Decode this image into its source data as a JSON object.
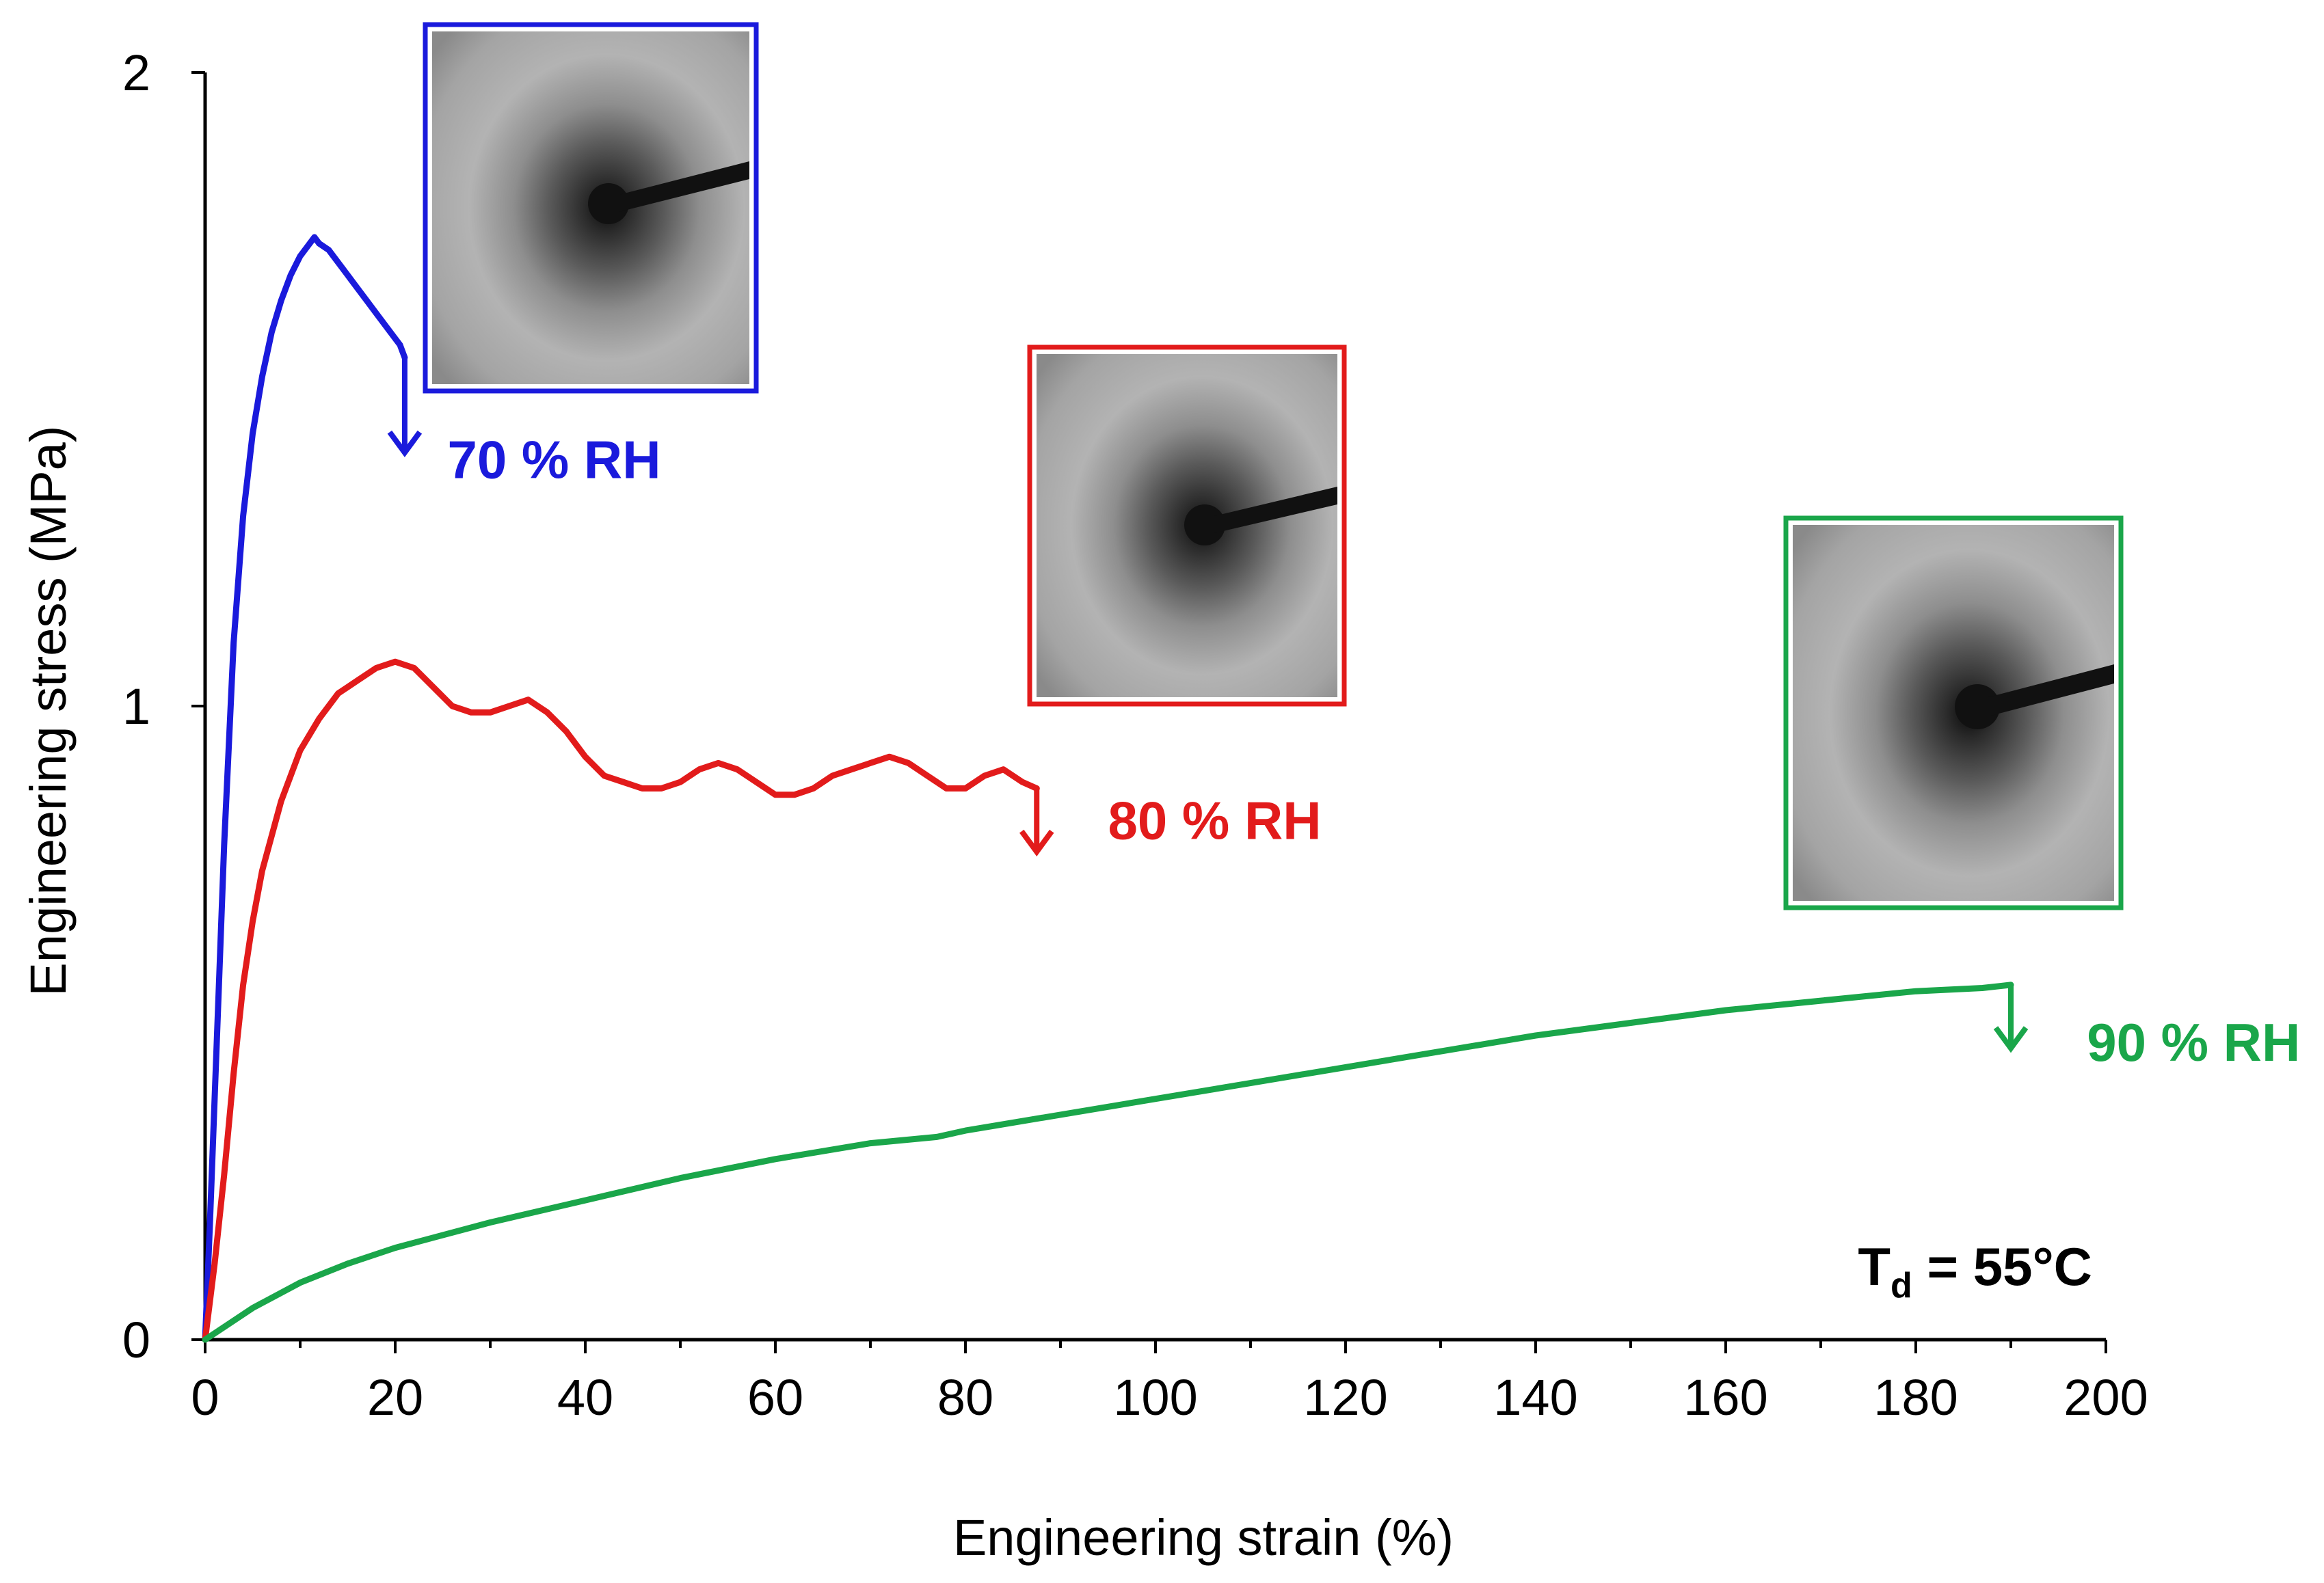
{
  "chart_data": {
    "type": "line",
    "title": "",
    "xlabel": "Engineering strain (%)",
    "ylabel": "Engineering stress (MPa)",
    "xlim": [
      0,
      200
    ],
    "ylim": [
      0,
      2
    ],
    "xticks": [
      0,
      20,
      40,
      60,
      80,
      100,
      120,
      140,
      160,
      180,
      200
    ],
    "xtick_labels": [
      "0",
      "20",
      "40",
      "60",
      "80",
      "100",
      "120",
      "140",
      "160",
      "180",
      "200"
    ],
    "yticks": [
      0,
      1,
      2
    ],
    "ytick_labels": [
      "0",
      "1",
      "2"
    ],
    "grid": false,
    "annotation": {
      "main": "T",
      "sub": "d",
      "rest": " = 55°C"
    },
    "series": [
      {
        "name": "70 % RH",
        "color": "#1a1adc",
        "label_at": [
          25.5,
          1.36
        ],
        "x": [
          0,
          0.5,
          1,
          1.5,
          2,
          3,
          4,
          5,
          6,
          7,
          8,
          9,
          10,
          11,
          11.5,
          12,
          13,
          14,
          15,
          16,
          17,
          18,
          19,
          20,
          20.5,
          21
        ],
        "y": [
          0,
          0.18,
          0.38,
          0.58,
          0.78,
          1.1,
          1.3,
          1.43,
          1.52,
          1.59,
          1.64,
          1.68,
          1.71,
          1.73,
          1.74,
          1.73,
          1.72,
          1.7,
          1.68,
          1.66,
          1.64,
          1.62,
          1.6,
          1.58,
          1.57,
          1.55
        ],
        "arrow": {
          "x": 21,
          "y_start": 1.55,
          "y_end": 1.4
        }
      },
      {
        "name": "80 % RH",
        "color": "#e21b1b",
        "label_at": [
          95,
          0.79
        ],
        "x": [
          0,
          1,
          2,
          3,
          4,
          5,
          6,
          8,
          10,
          12,
          14,
          16,
          18,
          20,
          22,
          24,
          26,
          28,
          30,
          32,
          34,
          36,
          38,
          40,
          42,
          44,
          46,
          48,
          50,
          52,
          54,
          56,
          58,
          60,
          62,
          64,
          66,
          68,
          70,
          72,
          74,
          76,
          78,
          80,
          82,
          84,
          86,
          87.5
        ],
        "y": [
          0,
          0.12,
          0.26,
          0.42,
          0.56,
          0.66,
          0.74,
          0.85,
          0.93,
          0.98,
          1.02,
          1.04,
          1.06,
          1.07,
          1.06,
          1.03,
          1.0,
          0.99,
          0.99,
          1.0,
          1.01,
          0.99,
          0.96,
          0.92,
          0.89,
          0.88,
          0.87,
          0.87,
          0.88,
          0.9,
          0.91,
          0.9,
          0.88,
          0.86,
          0.86,
          0.87,
          0.89,
          0.9,
          0.91,
          0.92,
          0.91,
          0.89,
          0.87,
          0.87,
          0.89,
          0.9,
          0.88,
          0.87
        ],
        "arrow": {
          "x": 87.5,
          "y_start": 0.87,
          "y_end": 0.77
        }
      },
      {
        "name": "90 % RH",
        "color": "#1aa64a",
        "label_at": [
          198,
          0.44
        ],
        "x": [
          0,
          5,
          10,
          15,
          20,
          30,
          40,
          50,
          60,
          70,
          77,
          80,
          90,
          100,
          110,
          120,
          130,
          140,
          150,
          160,
          170,
          180,
          187,
          190
        ],
        "y": [
          0,
          0.05,
          0.09,
          0.12,
          0.145,
          0.185,
          0.22,
          0.255,
          0.285,
          0.31,
          0.32,
          0.33,
          0.355,
          0.38,
          0.405,
          0.43,
          0.455,
          0.48,
          0.5,
          0.52,
          0.535,
          0.55,
          0.555,
          0.56
        ],
        "arrow": {
          "x": 190,
          "y_start": 0.56,
          "y_end": 0.46
        }
      }
    ]
  },
  "insets": [
    {
      "name": "70 % RH",
      "frame_color": "#1a1adc"
    },
    {
      "name": "80 % RH",
      "frame_color": "#e21b1b"
    },
    {
      "name": "90 % RH",
      "frame_color": "#1aa64a"
    }
  ]
}
